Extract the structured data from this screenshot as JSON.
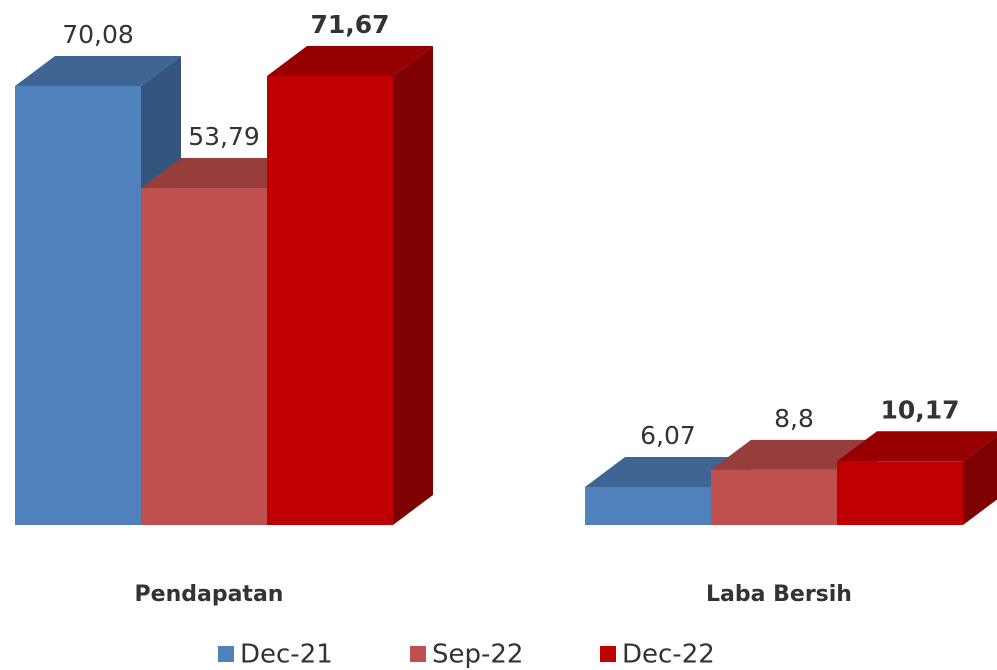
{
  "chart_data": {
    "type": "bar3d",
    "categories": [
      "Pendapatan",
      "Laba Bersih"
    ],
    "series": [
      {
        "name": "Dec-21",
        "color": "#4f81bd",
        "values": [
          70.08,
          6.07
        ],
        "value_labels": [
          "70,08",
          "6,07"
        ]
      },
      {
        "name": "Sep-22",
        "color": "#c0504d",
        "values": [
          53.79,
          8.8
        ],
        "value_labels": [
          "53,79",
          "8,8"
        ]
      },
      {
        "name": "Dec-22",
        "color": "#c00000",
        "values": [
          71.67,
          10.17
        ],
        "value_labels": [
          "71,67",
          "10,17"
        ]
      }
    ]
  }
}
